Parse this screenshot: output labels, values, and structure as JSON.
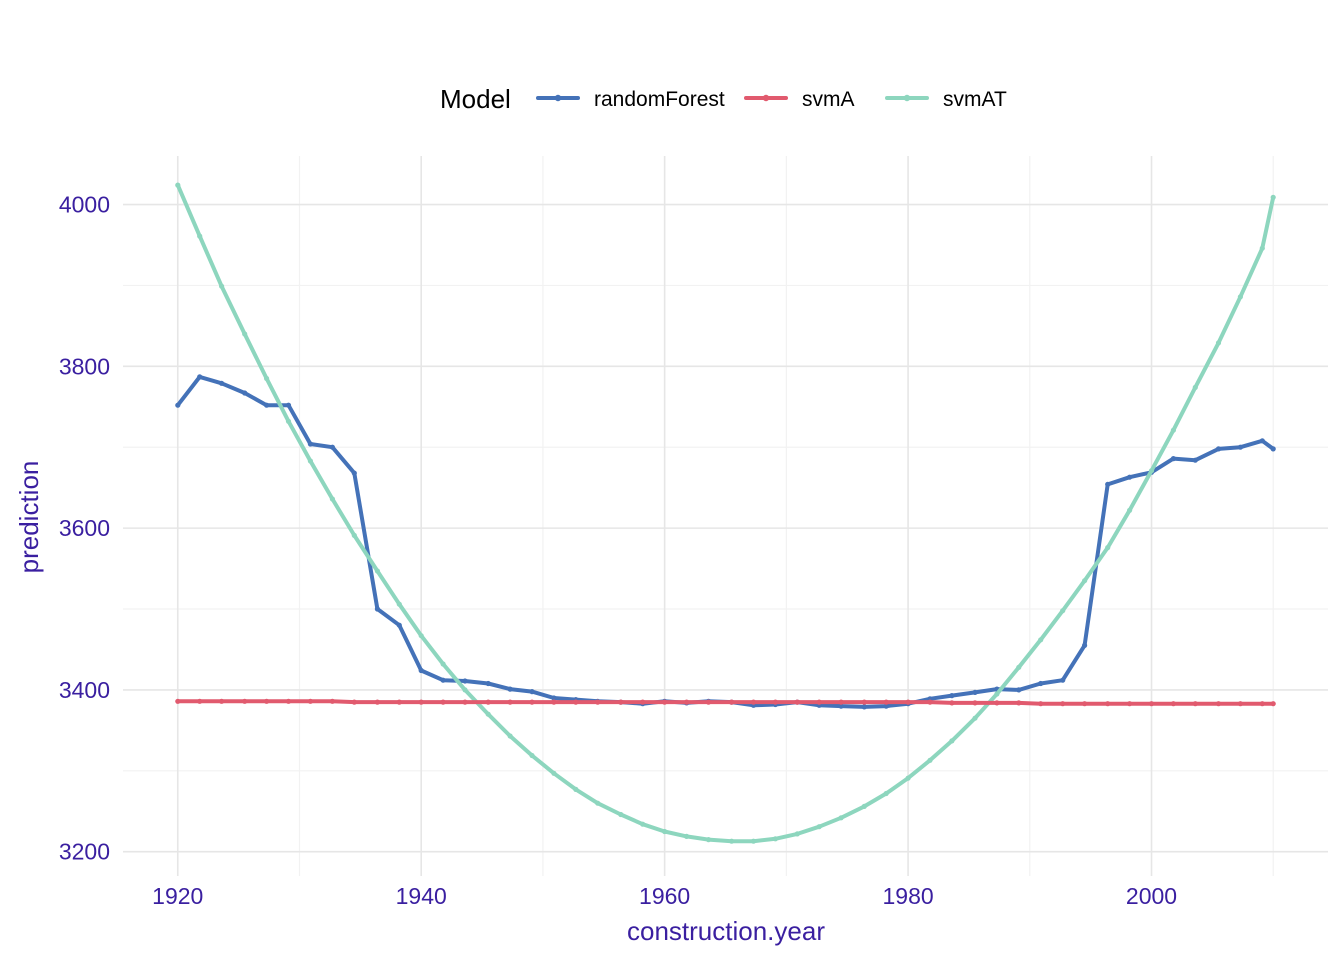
{
  "chart_data": {
    "type": "line",
    "title": "",
    "xlabel": "construction.year",
    "ylabel": "prediction",
    "xlim": [
      1915.5,
      2014.5
    ],
    "ylim": [
      3170,
      4060
    ],
    "x_ticks": [
      1920,
      1940,
      1960,
      1980,
      2000
    ],
    "y_ticks": [
      3200,
      3400,
      3600,
      3800,
      4000
    ],
    "x_minor_ticks": [
      1930,
      1950,
      1970,
      1990,
      2010
    ],
    "y_minor_ticks": [
      3300,
      3500,
      3700,
      3900
    ],
    "x_tick_labels": [
      "1920",
      "1940",
      "1960",
      "1980",
      "2000"
    ],
    "y_tick_labels": [
      "3200",
      "3400",
      "3600",
      "3800",
      "4000"
    ],
    "grid": true,
    "legend": {
      "title": "Model",
      "position": "top"
    },
    "series": [
      {
        "name": "randomForest",
        "color": "#4472b8",
        "x": [
          1920,
          1921.8,
          1923.6,
          1925.5,
          1927.3,
          1929.1,
          1930.9,
          1932.7,
          1934.5,
          1936.4,
          1938.2,
          1940,
          1941.8,
          1943.6,
          1945.5,
          1947.3,
          1949.1,
          1950.9,
          1952.7,
          1954.5,
          1956.4,
          1958.2,
          1960,
          1961.8,
          1963.6,
          1965.5,
          1967.3,
          1969.1,
          1970.9,
          1972.7,
          1974.5,
          1976.4,
          1978.2,
          1980,
          1981.8,
          1983.6,
          1985.5,
          1987.3,
          1989.1,
          1990.9,
          1992.7,
          1994.5,
          1996.4,
          1998.2,
          2000,
          2001.8,
          2003.6,
          2005.5,
          2007.3,
          2009.1,
          2010
        ],
        "y": [
          3752,
          3787,
          3779,
          3767,
          3752,
          3752,
          3704,
          3700,
          3668,
          3500,
          3480,
          3424,
          3412,
          3411,
          3408,
          3401,
          3398,
          3390,
          3388,
          3386,
          3385,
          3383,
          3386,
          3384,
          3386,
          3385,
          3381,
          3382,
          3385,
          3381,
          3380,
          3379,
          3380,
          3383,
          3389,
          3393,
          3397,
          3401,
          3400,
          3408,
          3412,
          3455,
          3654,
          3663,
          3669,
          3686,
          3684,
          3698,
          3700,
          3708,
          3698
        ]
      },
      {
        "name": "svmA",
        "color": "#e15a6e",
        "x": [
          1920,
          1921.8,
          1923.6,
          1925.5,
          1927.3,
          1929.1,
          1930.9,
          1932.7,
          1934.5,
          1936.4,
          1938.2,
          1940,
          1941.8,
          1943.6,
          1945.5,
          1947.3,
          1949.1,
          1950.9,
          1952.7,
          1954.5,
          1956.4,
          1958.2,
          1960,
          1961.8,
          1963.6,
          1965.5,
          1967.3,
          1969.1,
          1970.9,
          1972.7,
          1974.5,
          1976.4,
          1978.2,
          1980,
          1981.8,
          1983.6,
          1985.5,
          1987.3,
          1989.1,
          1990.9,
          1992.7,
          1994.5,
          1996.4,
          1998.2,
          2000,
          2001.8,
          2003.6,
          2005.5,
          2007.3,
          2009.1,
          2010
        ],
        "y": [
          3386,
          3386,
          3386,
          3386,
          3386,
          3386,
          3386,
          3386,
          3385,
          3385,
          3385,
          3385,
          3385,
          3385,
          3385,
          3385,
          3385,
          3385,
          3385,
          3385,
          3385,
          3385,
          3385,
          3385,
          3385,
          3385,
          3385,
          3385,
          3385,
          3385,
          3385,
          3385,
          3385,
          3385,
          3385,
          3384,
          3384,
          3384,
          3384,
          3383,
          3383,
          3383,
          3383,
          3383,
          3383,
          3383,
          3383,
          3383,
          3383,
          3383,
          3383
        ]
      },
      {
        "name": "svmAT",
        "color": "#8dd6be",
        "x": [
          1920,
          1921.8,
          1923.6,
          1925.5,
          1927.3,
          1929.1,
          1930.9,
          1932.7,
          1934.5,
          1936.4,
          1938.2,
          1940,
          1941.8,
          1943.6,
          1945.5,
          1947.3,
          1949.1,
          1950.9,
          1952.7,
          1954.5,
          1956.4,
          1958.2,
          1960,
          1961.8,
          1963.6,
          1965.5,
          1967.3,
          1969.1,
          1970.9,
          1972.7,
          1974.5,
          1976.4,
          1978.2,
          1980,
          1981.8,
          1983.6,
          1985.5,
          1987.3,
          1989.1,
          1990.9,
          1992.7,
          1994.5,
          1996.4,
          1998.2,
          2000,
          2001.8,
          2003.6,
          2005.5,
          2007.3,
          2009.1,
          2010
        ],
        "y": [
          4024,
          3961,
          3899,
          3840,
          3785,
          3732,
          3683,
          3636,
          3591,
          3547,
          3506,
          3467,
          3432,
          3400,
          3370,
          3343,
          3319,
          3297,
          3277,
          3260,
          3246,
          3234,
          3225,
          3219,
          3215,
          3213,
          3213,
          3216,
          3222,
          3231,
          3242,
          3256,
          3272,
          3291,
          3313,
          3337,
          3365,
          3395,
          3428,
          3462,
          3498,
          3535,
          3576,
          3622,
          3671,
          3721,
          3774,
          3829,
          3886,
          3946,
          4009
        ]
      }
    ]
  }
}
